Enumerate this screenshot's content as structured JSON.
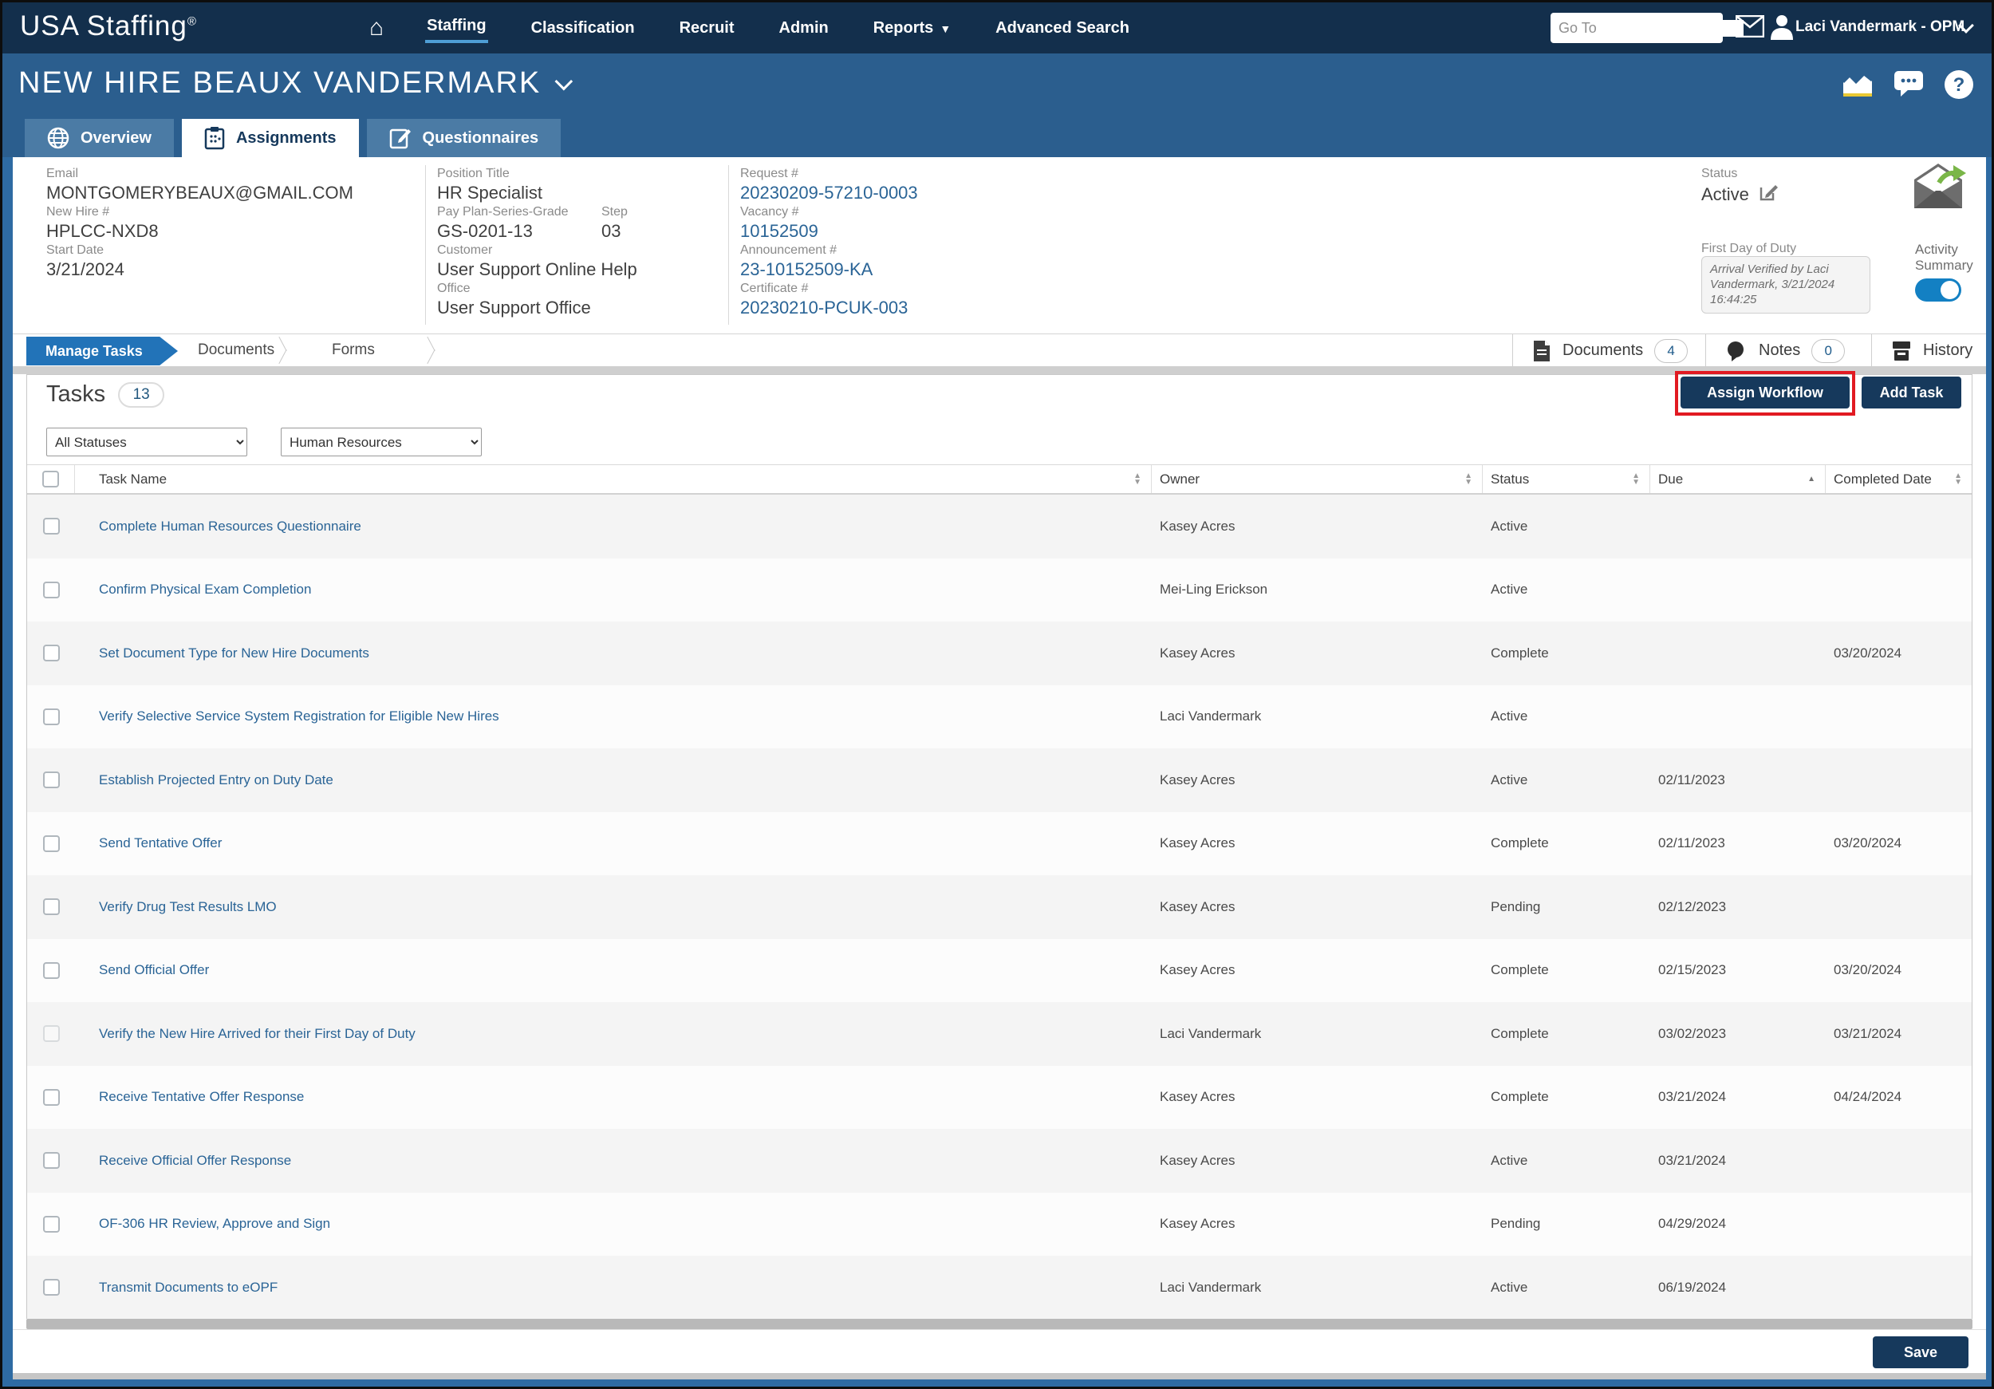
{
  "colors": {
    "topbar": "#132f4c",
    "titlebar": "#2b5e8e",
    "frame_blue": "#2e6ba3",
    "subtab_blue": "#2273b8",
    "link_blue": "#2a6496",
    "button_navy": "#16395c",
    "annotation_red": "#e11a22",
    "toggle_on": "#1380c3",
    "arrow_green": "#7ab648"
  },
  "topbar": {
    "logo": "USA Staffing",
    "logo_reg": "®",
    "nav": [
      {
        "label": "Staffing",
        "active": true
      },
      {
        "label": "Classification"
      },
      {
        "label": "Recruit"
      },
      {
        "label": "Admin"
      },
      {
        "label": "Reports",
        "caret": true
      },
      {
        "label": "Advanced Search"
      }
    ],
    "goto_placeholder": "Go To",
    "user": "Laci Vandermark - OPM"
  },
  "title_bar": {
    "title": "NEW HIRE BEAUX VANDERMARK"
  },
  "tabs": [
    {
      "label": "Overview",
      "icon": "globe-icon",
      "active": false
    },
    {
      "label": "Assignments",
      "icon": "clipboard-icon",
      "active": true
    },
    {
      "label": "Questionnaires",
      "icon": "questionnaire-icon",
      "active": false
    }
  ],
  "info": {
    "email_label": "Email",
    "email": "MONTGOMERYBEAUX@GMAIL.COM",
    "new_hire_label": "New Hire #",
    "new_hire": "HPLCC-NXD8",
    "start_date_label": "Start Date",
    "start_date": "3/21/2024",
    "position_title_label": "Position Title",
    "position_title": "HR Specialist",
    "pay_plan_label": "Pay Plan-Series-Grade",
    "pay_plan": "GS-0201-13",
    "step_label": "Step",
    "step": "03",
    "customer_label": "Customer",
    "customer": "User Support Online Help",
    "office_label": "Office",
    "office": "User Support Office",
    "request_label": "Request #",
    "request": "20230209-57210-0003",
    "vacancy_label": "Vacancy #",
    "vacancy": "10152509",
    "announcement_label": "Announcement #",
    "announcement": "23-10152509-KA",
    "certificate_label": "Certificate #",
    "certificate": "20230210-PCUK-003",
    "status_label": "Status",
    "status": "Active",
    "first_day_label": "First Day of Duty",
    "arrival_note": "Arrival Verified by Laci Vandermark, 3/21/2024 16:44:25",
    "activity_summary_label": "Activity Summary"
  },
  "subtabs": {
    "manage_tasks": "Manage Tasks",
    "documents": "Documents",
    "forms": "Forms"
  },
  "utility": {
    "documents_label": "Documents",
    "documents_count": "4",
    "notes_label": "Notes",
    "notes_count": "0",
    "history_label": "History"
  },
  "tasks": {
    "title": "Tasks",
    "count": "13",
    "filters": {
      "status": "All Statuses",
      "category": "Human Resources"
    },
    "assign_workflow_label": "Assign Workflow",
    "add_task_label": "Add Task",
    "columns": [
      "Task Name",
      "Owner",
      "Status",
      "Due",
      "Completed Date"
    ],
    "rows": [
      {
        "name": "Complete Human Resources Questionnaire",
        "owner": "Kasey Acres",
        "status": "Active",
        "due": "",
        "completed": ""
      },
      {
        "name": "Confirm Physical Exam Completion",
        "owner": "Mei-Ling Erickson",
        "status": "Active",
        "due": "",
        "completed": ""
      },
      {
        "name": "Set Document Type for New Hire Documents",
        "owner": "Kasey Acres",
        "status": "Complete",
        "due": "",
        "completed": "03/20/2024"
      },
      {
        "name": "Verify Selective Service System Registration for Eligible New Hires",
        "owner": "Laci Vandermark",
        "status": "Active",
        "due": "",
        "completed": ""
      },
      {
        "name": "Establish Projected Entry on Duty Date",
        "owner": "Kasey Acres",
        "status": "Active",
        "due": "02/11/2023",
        "completed": ""
      },
      {
        "name": "Send Tentative Offer",
        "owner": "Kasey Acres",
        "status": "Complete",
        "due": "02/11/2023",
        "completed": "03/20/2024"
      },
      {
        "name": "Verify Drug Test Results LMO",
        "owner": "Kasey Acres",
        "status": "Pending",
        "due": "02/12/2023",
        "completed": ""
      },
      {
        "name": "Send Official Offer",
        "owner": "Kasey Acres",
        "status": "Complete",
        "due": "02/15/2023",
        "completed": "03/20/2024"
      },
      {
        "name": "Verify the New Hire Arrived for their First Day of Duty",
        "owner": "Laci Vandermark",
        "status": "Complete",
        "due": "03/02/2023",
        "completed": "03/21/2024",
        "checkbox_disabled": true
      },
      {
        "name": "Receive Tentative Offer Response",
        "owner": "Kasey Acres",
        "status": "Complete",
        "due": "03/21/2024",
        "completed": "04/24/2024"
      },
      {
        "name": "Receive Official Offer Response",
        "owner": "Kasey Acres",
        "status": "Active",
        "due": "03/21/2024",
        "completed": ""
      },
      {
        "name": "OF-306 HR Review, Approve and Sign",
        "owner": "Kasey Acres",
        "status": "Pending",
        "due": "04/29/2024",
        "completed": ""
      },
      {
        "name": "Transmit Documents to eOPF",
        "owner": "Laci Vandermark",
        "status": "Active",
        "due": "06/19/2024",
        "completed": ""
      }
    ]
  },
  "footer": {
    "save_label": "Save"
  }
}
